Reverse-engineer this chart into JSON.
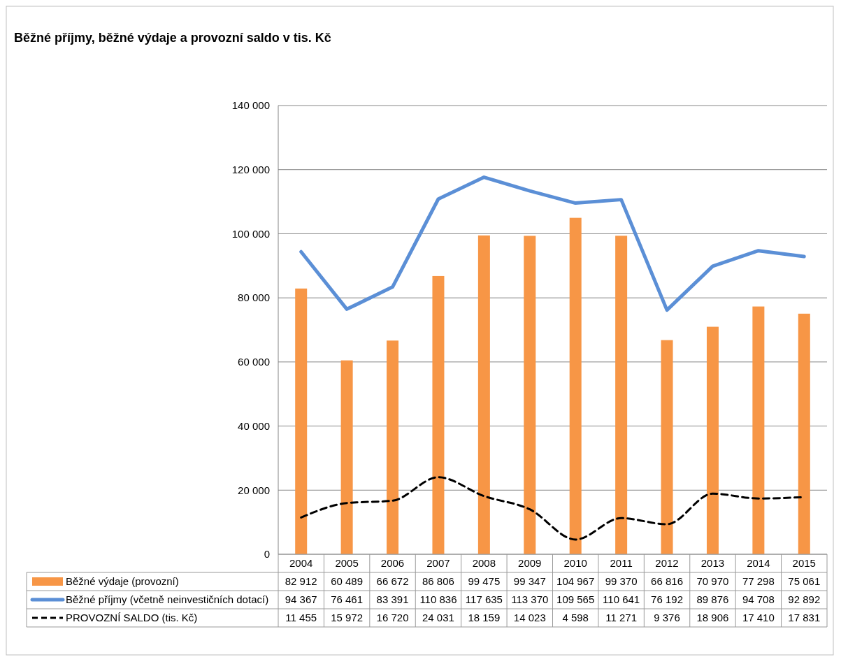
{
  "chart_data": {
    "type": "bar",
    "title": "Běžné příjmy, běžné výdaje a provozní saldo v tis. Kč",
    "categories": [
      "2004",
      "2005",
      "2006",
      "2007",
      "2008",
      "2009",
      "2010",
      "2011",
      "2012",
      "2013",
      "2014",
      "2015"
    ],
    "series": [
      {
        "name": "Běžné výdaje (provozní)",
        "color": "#f79646",
        "values": [
          82912,
          60489,
          66672,
          86806,
          99475,
          99347,
          104967,
          99370,
          66816,
          70970,
          77298,
          75061
        ],
        "value_labels": [
          "82 912",
          "60 489",
          "66 672",
          "86 806",
          "99 475",
          "99 347",
          "104 967",
          "99 370",
          "66 816",
          "70 970",
          "77 298",
          "75 061"
        ]
      },
      {
        "name": "Běžné příjmy (včetně neinvestičních dotací)",
        "type": "line",
        "color": "#5b8fd6",
        "line_style": "solid",
        "values": [
          94367,
          76461,
          83391,
          110836,
          117635,
          113370,
          109565,
          110641,
          76192,
          89876,
          94708,
          92892
        ],
        "value_labels": [
          "94 367",
          "76 461",
          "83 391",
          "110 836",
          "117 635",
          "113 370",
          "109 565",
          "110 641",
          "76 192",
          "89 876",
          "94 708",
          "92 892"
        ]
      },
      {
        "name": "PROVOZNÍ SALDO (tis. Kč)",
        "type": "line",
        "color": "#000000",
        "line_style": "dashed",
        "values": [
          11455,
          15972,
          16720,
          24031,
          18159,
          14023,
          4598,
          11271,
          9376,
          18906,
          17410,
          17831
        ],
        "value_labels": [
          "11 455",
          "15 972",
          "16 720",
          "24 031",
          "18 159",
          "14 023",
          "4 598",
          "11 271",
          "9 376",
          "18 906",
          "17 410",
          "17 831"
        ]
      }
    ],
    "ylim": [
      0,
      140000
    ],
    "yticks": [
      0,
      {
        "value": 20000,
        "label": "20 000"
      },
      {
        "value": 40000,
        "label": "40 000"
      },
      {
        "value": 60000,
        "label": "60 000"
      },
      {
        "value": 80000,
        "label": "80 000"
      },
      {
        "value": 100000,
        "label": "100 000"
      },
      {
        "value": 120000,
        "label": "120 000"
      },
      {
        "value": 140000,
        "label": "140 000"
      }
    ],
    "grid": "y",
    "legend": "bottom",
    "marker": "none"
  }
}
